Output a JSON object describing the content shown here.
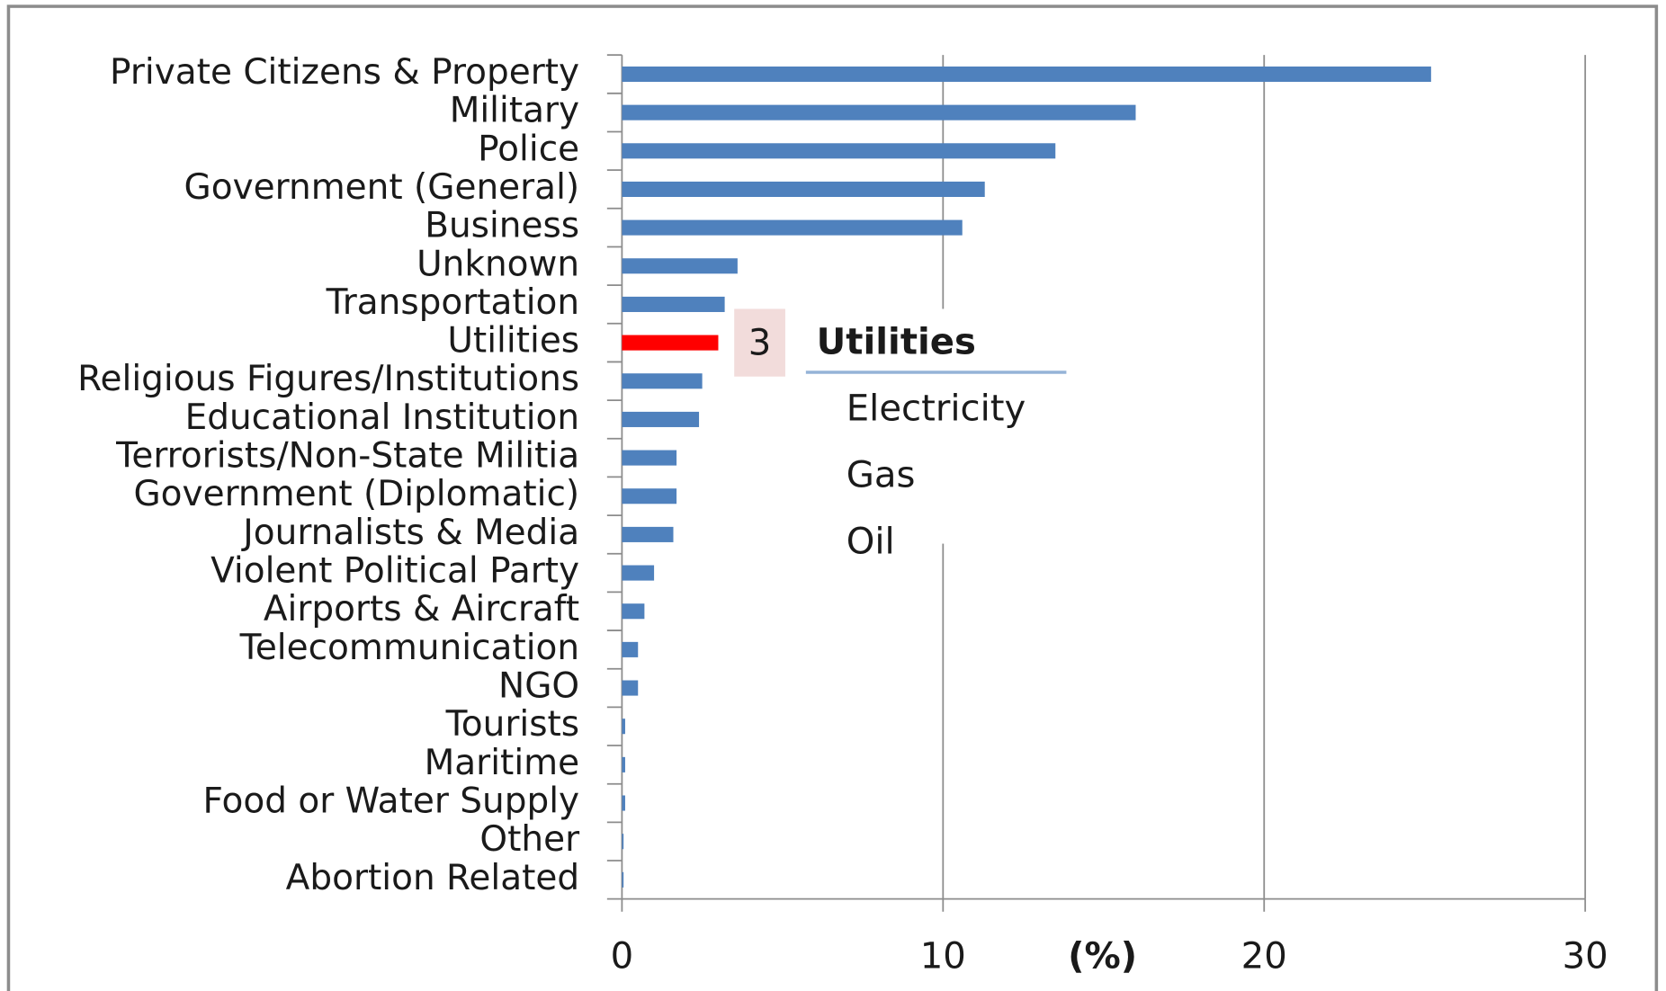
{
  "chart_data": {
    "type": "bar",
    "orientation": "horizontal",
    "categories": [
      "Private Citizens & Property",
      "Military",
      "Police",
      "Government (General)",
      "Business",
      "Unknown",
      "Transportation",
      "Utilities",
      "Religious Figures/Institutions",
      "Educational Institution",
      "Terrorists/Non-State Militia",
      "Government (Diplomatic)",
      "Journalists & Media",
      "Violent Political Party",
      "Airports & Aircraft",
      "Telecommunication",
      "NGO",
      "Tourists",
      "Maritime",
      "Food or Water Supply",
      "Other",
      "Abortion Related"
    ],
    "values": [
      25.2,
      16.0,
      13.5,
      11.3,
      10.6,
      3.6,
      3.2,
      3,
      2.5,
      2.4,
      1.7,
      1.7,
      1.6,
      1.0,
      0.7,
      0.5,
      0.5,
      0.1,
      0.1,
      0.1,
      0.05,
      0.05
    ],
    "colors": [
      "#4f81bd",
      "#4f81bd",
      "#4f81bd",
      "#4f81bd",
      "#4f81bd",
      "#4f81bd",
      "#4f81bd",
      "#ff0000",
      "#4f81bd",
      "#4f81bd",
      "#4f81bd",
      "#4f81bd",
      "#4f81bd",
      "#4f81bd",
      "#4f81bd",
      "#4f81bd",
      "#4f81bd",
      "#4f81bd",
      "#4f81bd",
      "#4f81bd",
      "#4f81bd",
      "#4f81bd"
    ],
    "data_labels": [
      {
        "index": 7
      }
    ],
    "xlabel": "(%)",
    "xlim": [
      0,
      30
    ],
    "xticks": [
      0,
      10,
      20,
      30
    ],
    "grid": true,
    "annotation": {
      "title": "Utilities",
      "items": [
        "Electricity",
        "Gas",
        "Oil"
      ]
    }
  }
}
